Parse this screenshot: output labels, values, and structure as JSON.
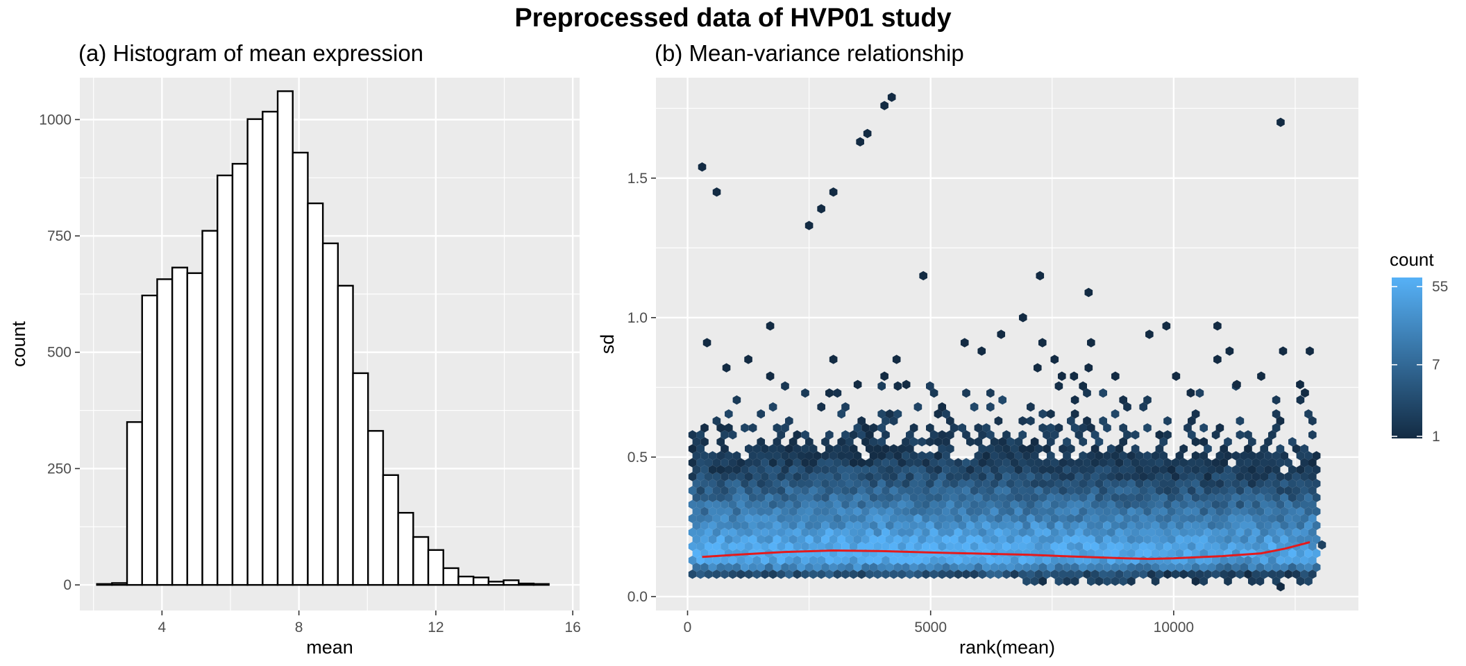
{
  "title": "Preprocessed data of HVP01 study",
  "colors": {
    "panel_bg": "#ebebeb",
    "grid": "#ffffff",
    "bar_fill": "#ffffff",
    "bar_stroke": "#000000",
    "hex_low": "#132b43",
    "hex_high": "#56b1f7",
    "smooth_line": "#e41a1c"
  },
  "chart_data": [
    {
      "type": "histogram",
      "subtitle": "(a) Histogram of mean expression",
      "xlabel": "mean",
      "ylabel": "count",
      "xlim": [
        1.6,
        16.2
      ],
      "ylim": [
        -55,
        1090
      ],
      "x_ticks": [
        4,
        8,
        12,
        16
      ],
      "y_ticks": [
        0,
        250,
        500,
        750,
        1000
      ],
      "grid": true,
      "bins": [
        {
          "x0": 2.1,
          "x1": 2.54,
          "count": 2
        },
        {
          "x0": 2.54,
          "x1": 2.98,
          "count": 4
        },
        {
          "x0": 2.98,
          "x1": 3.42,
          "count": 350
        },
        {
          "x0": 3.42,
          "x1": 3.86,
          "count": 622
        },
        {
          "x0": 3.86,
          "x1": 4.3,
          "count": 657
        },
        {
          "x0": 4.3,
          "x1": 4.74,
          "count": 682
        },
        {
          "x0": 4.74,
          "x1": 5.18,
          "count": 670
        },
        {
          "x0": 5.18,
          "x1": 5.62,
          "count": 761
        },
        {
          "x0": 5.62,
          "x1": 6.06,
          "count": 880
        },
        {
          "x0": 6.06,
          "x1": 6.5,
          "count": 905
        },
        {
          "x0": 6.5,
          "x1": 6.94,
          "count": 1001
        },
        {
          "x0": 6.94,
          "x1": 7.38,
          "count": 1017
        },
        {
          "x0": 7.38,
          "x1": 7.82,
          "count": 1061
        },
        {
          "x0": 7.82,
          "x1": 8.26,
          "count": 929
        },
        {
          "x0": 8.26,
          "x1": 8.7,
          "count": 820
        },
        {
          "x0": 8.7,
          "x1": 9.14,
          "count": 734
        },
        {
          "x0": 9.14,
          "x1": 9.58,
          "count": 643
        },
        {
          "x0": 9.58,
          "x1": 10.02,
          "count": 455
        },
        {
          "x0": 10.02,
          "x1": 10.46,
          "count": 331
        },
        {
          "x0": 10.46,
          "x1": 10.9,
          "count": 236
        },
        {
          "x0": 10.9,
          "x1": 11.34,
          "count": 155
        },
        {
          "x0": 11.34,
          "x1": 11.78,
          "count": 103
        },
        {
          "x0": 11.78,
          "x1": 12.22,
          "count": 75
        },
        {
          "x0": 12.22,
          "x1": 12.66,
          "count": 36
        },
        {
          "x0": 12.66,
          "x1": 13.1,
          "count": 18
        },
        {
          "x0": 13.1,
          "x1": 13.54,
          "count": 16
        },
        {
          "x0": 13.54,
          "x1": 13.98,
          "count": 7
        },
        {
          "x0": 13.98,
          "x1": 14.42,
          "count": 10
        },
        {
          "x0": 14.42,
          "x1": 14.86,
          "count": 3
        },
        {
          "x0": 14.86,
          "x1": 15.3,
          "count": 2
        }
      ]
    },
    {
      "type": "hexbin",
      "subtitle": "(b) Mean-variance relationship",
      "xlabel": "rank(mean)",
      "ylabel": "sd",
      "xlim": [
        -650,
        13800
      ],
      "ylim": [
        -0.05,
        1.86
      ],
      "x_ticks": [
        0,
        5000,
        10000
      ],
      "y_ticks": [
        0.0,
        0.5,
        1.0,
        1.5
      ],
      "grid": true,
      "n_points": 12890,
      "legend": {
        "title": "count",
        "position": "right",
        "scale": "log",
        "ticks": [
          1,
          7,
          55
        ]
      },
      "smooth_line": [
        {
          "x": 300,
          "y": 0.142
        },
        {
          "x": 1000,
          "y": 0.15
        },
        {
          "x": 2000,
          "y": 0.16
        },
        {
          "x": 3000,
          "y": 0.165
        },
        {
          "x": 4000,
          "y": 0.163
        },
        {
          "x": 5000,
          "y": 0.158
        },
        {
          "x": 6000,
          "y": 0.154
        },
        {
          "x": 7000,
          "y": 0.15
        },
        {
          "x": 8000,
          "y": 0.143
        },
        {
          "x": 9000,
          "y": 0.137
        },
        {
          "x": 9500,
          "y": 0.135
        },
        {
          "x": 10000,
          "y": 0.137
        },
        {
          "x": 11000,
          "y": 0.145
        },
        {
          "x": 11800,
          "y": 0.155
        },
        {
          "x": 12300,
          "y": 0.172
        },
        {
          "x": 12800,
          "y": 0.195
        }
      ],
      "outlier_bins": [
        {
          "x": 300,
          "y": 1.54
        },
        {
          "x": 600,
          "y": 1.45
        },
        {
          "x": 2500,
          "y": 1.33
        },
        {
          "x": 2750,
          "y": 1.39
        },
        {
          "x": 3000,
          "y": 1.45
        },
        {
          "x": 3550,
          "y": 1.63
        },
        {
          "x": 3700,
          "y": 1.66
        },
        {
          "x": 4050,
          "y": 1.76
        },
        {
          "x": 4200,
          "y": 1.79
        },
        {
          "x": 12200,
          "y": 1.7
        },
        {
          "x": 4850,
          "y": 1.15
        },
        {
          "x": 7250,
          "y": 1.15
        },
        {
          "x": 8250,
          "y": 1.09
        },
        {
          "x": 6900,
          "y": 1.0
        },
        {
          "x": 1700,
          "y": 0.97
        },
        {
          "x": 9850,
          "y": 0.97
        },
        {
          "x": 10900,
          "y": 0.97
        },
        {
          "x": 9500,
          "y": 0.94
        },
        {
          "x": 6450,
          "y": 0.94
        },
        {
          "x": 400,
          "y": 0.91
        },
        {
          "x": 5700,
          "y": 0.91
        },
        {
          "x": 7300,
          "y": 0.91
        },
        {
          "x": 8300,
          "y": 0.91
        },
        {
          "x": 6050,
          "y": 0.88
        },
        {
          "x": 11150,
          "y": 0.88
        },
        {
          "x": 12250,
          "y": 0.88
        },
        {
          "x": 12800,
          "y": 0.88
        },
        {
          "x": 1250,
          "y": 0.85
        },
        {
          "x": 3000,
          "y": 0.85
        },
        {
          "x": 4300,
          "y": 0.85
        },
        {
          "x": 7550,
          "y": 0.85
        },
        {
          "x": 10900,
          "y": 0.85
        },
        {
          "x": 800,
          "y": 0.82
        },
        {
          "x": 7200,
          "y": 0.82
        },
        {
          "x": 8250,
          "y": 0.82
        },
        {
          "x": 1700,
          "y": 0.79
        },
        {
          "x": 4050,
          "y": 0.79
        },
        {
          "x": 7700,
          "y": 0.79
        },
        {
          "x": 7950,
          "y": 0.79
        },
        {
          "x": 8800,
          "y": 0.79
        },
        {
          "x": 10050,
          "y": 0.79
        },
        {
          "x": 11800,
          "y": 0.79
        },
        {
          "x": 12600,
          "y": 0.76
        },
        {
          "x": 4500,
          "y": 0.76
        },
        {
          "x": 3500,
          "y": 0.76
        },
        {
          "x": 11300,
          "y": 0.76
        },
        {
          "x": 12700,
          "y": 0.73
        },
        {
          "x": 10350,
          "y": 0.73
        }
      ]
    }
  ]
}
